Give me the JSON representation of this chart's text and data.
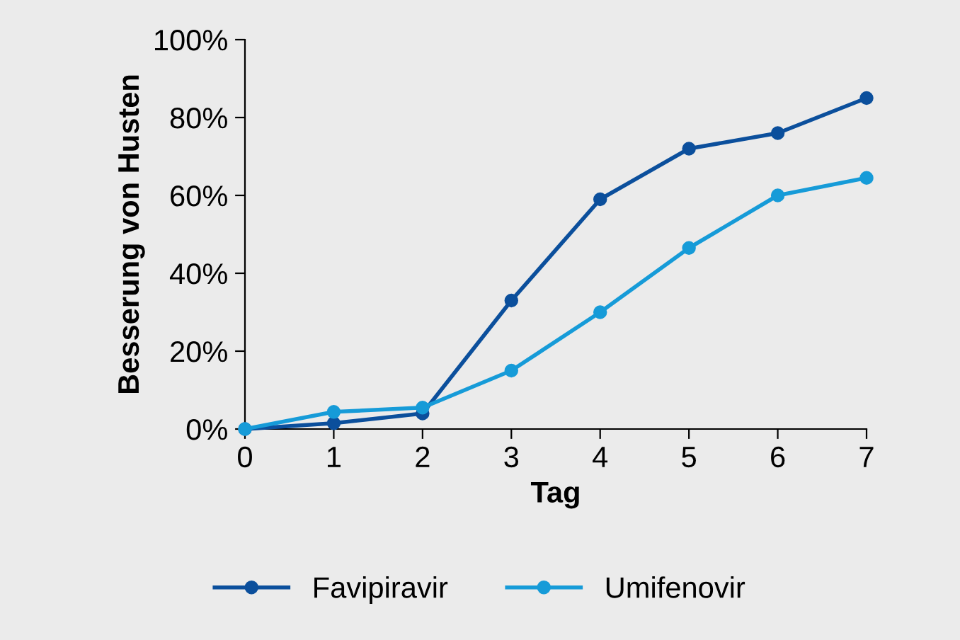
{
  "chart_data": {
    "type": "line",
    "xlabel": "Tag",
    "ylabel": "Besserung von Husten",
    "x": [
      0,
      1,
      2,
      3,
      4,
      5,
      6,
      7
    ],
    "series": [
      {
        "name": "Favipiravir",
        "color": "#0b4f9c",
        "values": [
          0,
          1.5,
          4,
          33,
          59,
          72,
          76,
          85
        ]
      },
      {
        "name": "Umifenovir",
        "color": "#169bd8",
        "values": [
          0,
          4.4,
          5.5,
          15,
          30,
          46.5,
          60,
          64.5
        ]
      }
    ],
    "xlim": [
      0,
      7
    ],
    "xticks": [
      0,
      1,
      2,
      3,
      4,
      5,
      6,
      7
    ],
    "ylim": [
      0,
      100
    ],
    "yticks": [
      {
        "value": 0,
        "label": "0%"
      },
      {
        "value": 20,
        "label": "20%"
      },
      {
        "value": 40,
        "label": "40%"
      },
      {
        "value": 60,
        "label": "60%"
      },
      {
        "value": 80,
        "label": "80%"
      },
      {
        "value": 100,
        "label": "100%"
      }
    ],
    "grid": false,
    "legend": "bottom",
    "marker": "circle",
    "line_style": "solid"
  }
}
